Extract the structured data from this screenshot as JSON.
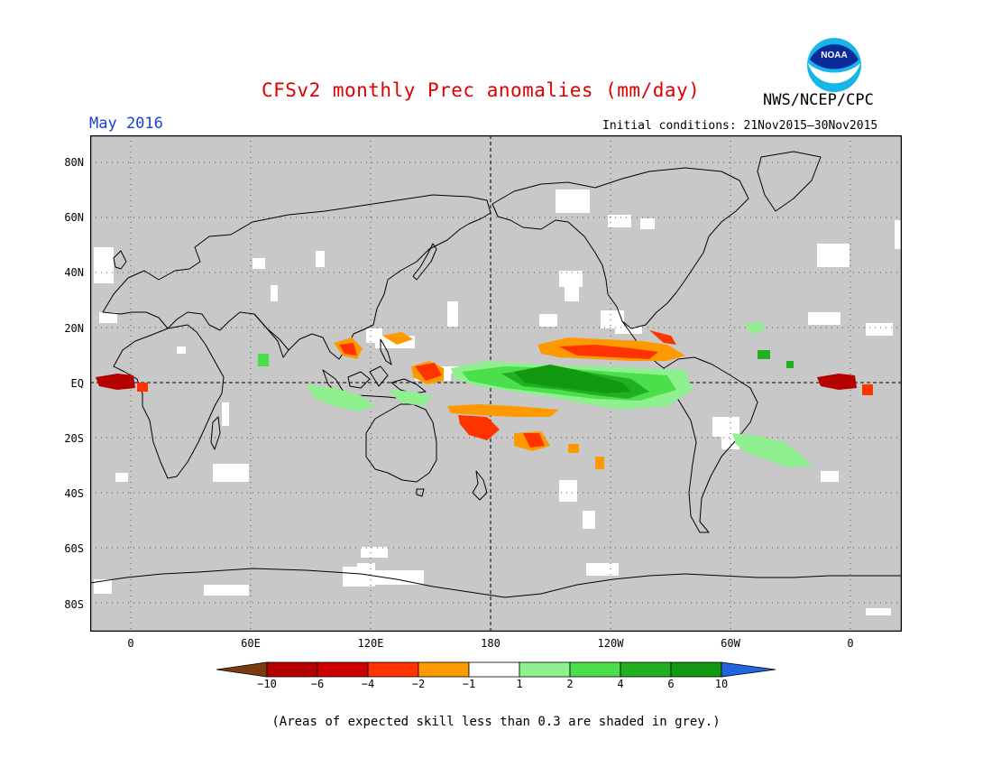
{
  "header": {
    "title": "CFSv2 monthly Prec anomalies (mm/day)",
    "agency": "NWS/NCEP/CPC",
    "period": "May 2016",
    "initial_conditions": "Initial conditions: 21Nov2015–30Nov2015"
  },
  "logo": {
    "text": "NOAA",
    "icon": "noaa-logo"
  },
  "map": {
    "projection": "cylindrical equidistant",
    "center_longitude": 180,
    "lat_labels": [
      "80N",
      "60N",
      "40N",
      "20N",
      "EQ",
      "20S",
      "40S",
      "60S",
      "80S"
    ],
    "lon_labels": [
      "0",
      "60E",
      "120E",
      "180",
      "120W",
      "60W",
      "0"
    ],
    "background_color": "#c8c8c8",
    "grid": "dotted"
  },
  "colorbar": {
    "labels": [
      "−10",
      "−6",
      "−4",
      "−2",
      "−1",
      "1",
      "2",
      "4",
      "6",
      "10"
    ],
    "colors": [
      "#7a3c10",
      "#b50000",
      "#cc0000",
      "#ff3300",
      "#ff9900",
      "#ffffff",
      "#8ff08f",
      "#4be04b",
      "#22b022",
      "#119911",
      "#2266dd"
    ]
  },
  "footnote": "(Areas of expected skill less than 0.3 are shaded in grey.)"
}
